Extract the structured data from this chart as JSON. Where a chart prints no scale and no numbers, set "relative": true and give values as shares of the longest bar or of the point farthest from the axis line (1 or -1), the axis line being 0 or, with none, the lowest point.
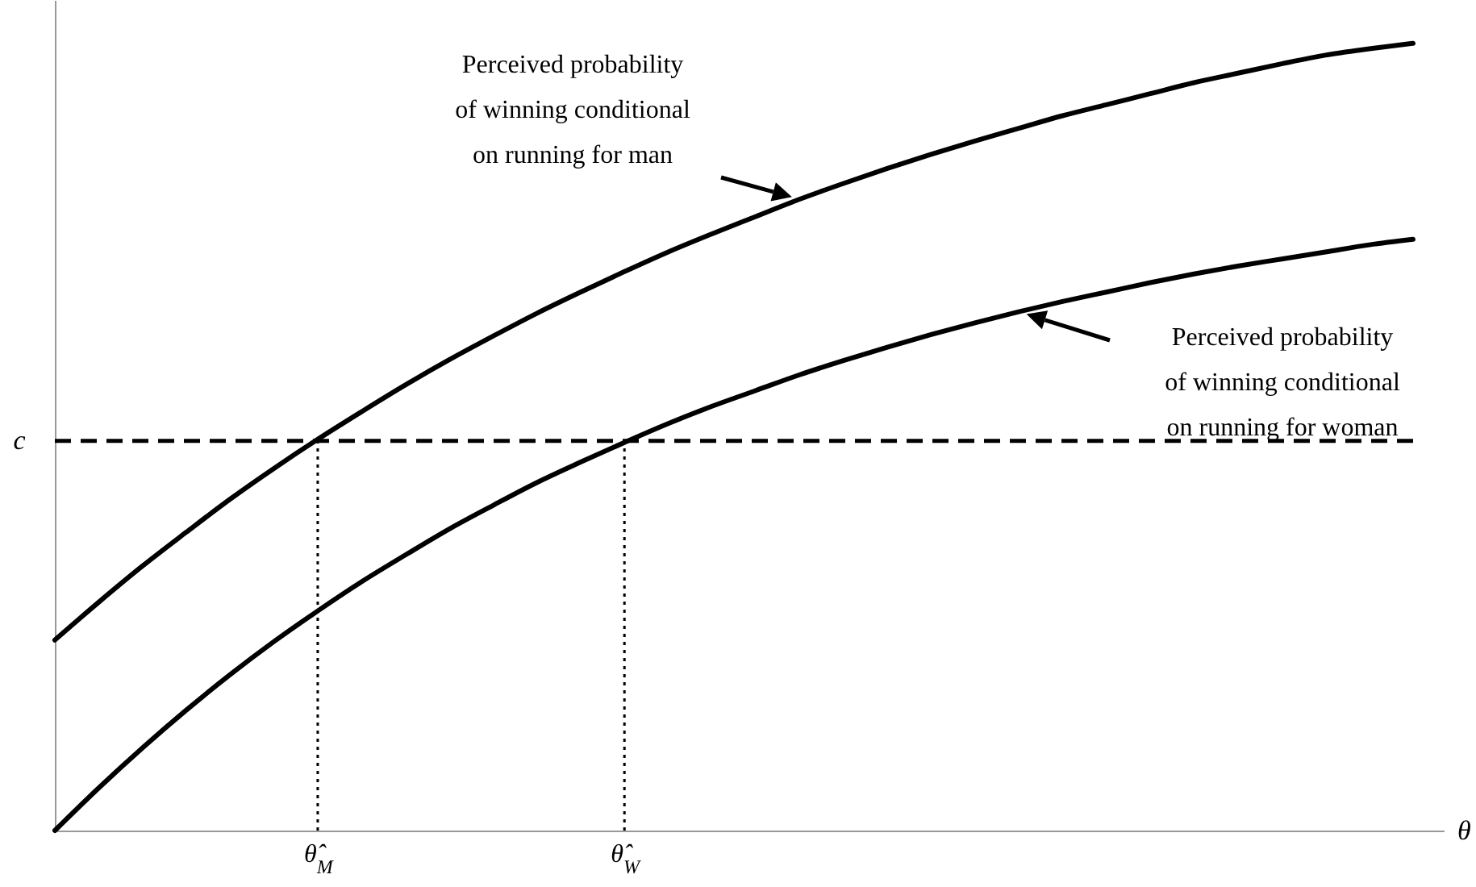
{
  "chart_data": {
    "type": "line",
    "relative": true,
    "xlabel": "θ",
    "categories": [
      null,
      null,
      null,
      null,
      null,
      null,
      "θ̂$_{M}$",
      null,
      null,
      null,
      null,
      null,
      null,
      "θ̂$_{W}$",
      null,
      null,
      null,
      null,
      null,
      null,
      null,
      null,
      null,
      null,
      null,
      null,
      null,
      null,
      null,
      null,
      null,
      null
    ],
    "series": [
      {
        "color": "#000000",
        "values": [
          0.242,
          0.29,
          0.336,
          0.379,
          0.421,
          0.46,
          0.497,
          0.532,
          0.566,
          0.598,
          0.628,
          0.657,
          0.684,
          0.71,
          0.735,
          0.758,
          0.78,
          0.802,
          0.822,
          0.841,
          0.859,
          0.876,
          0.892,
          0.908,
          0.922,
          0.936,
          0.95,
          0.962,
          0.974,
          0.985,
          0.993,
          1
        ]
      },
      {
        "color": "#000000",
        "values": [
          0,
          0.054,
          0.105,
          0.153,
          0.198,
          0.24,
          0.279,
          0.316,
          0.35,
          0.383,
          0.413,
          0.442,
          0.468,
          0.493,
          0.517,
          0.539,
          0.559,
          0.579,
          0.597,
          0.614,
          0.63,
          0.645,
          0.659,
          0.672,
          0.684,
          0.696,
          0.707,
          0.717,
          0.726,
          0.735,
          0.744,
          0.751
        ]
      }
    ],
    "ref_lines": [
      {
        "axis": "y",
        "value": 0.495,
        "label": "c",
        "line_style": "dashed"
      },
      {
        "axis": "x",
        "value": "θ̂$_{M}$",
        "line_style": "dotted"
      },
      {
        "axis": "x",
        "value": "θ̂$_{W}$",
        "line_style": "dotted"
      }
    ],
    "annotations": [
      "Perceived probability\nof winning conditional\non running for man",
      "Perceived probability\nof winning conditional\non running for woman"
    ],
    "grid": false,
    "line_style": "solid",
    "marker": "none"
  }
}
